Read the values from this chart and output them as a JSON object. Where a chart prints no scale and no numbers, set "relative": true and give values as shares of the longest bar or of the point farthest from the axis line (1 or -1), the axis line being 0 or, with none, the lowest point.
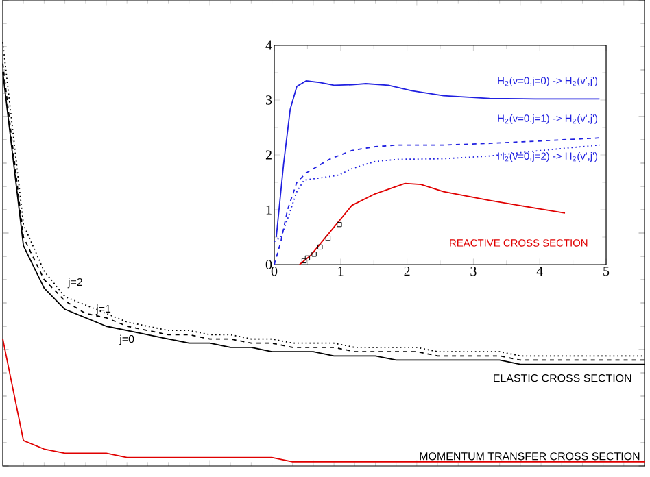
{
  "chart_data": [
    {
      "type": "line",
      "relative": true,
      "tick_labels": false,
      "categories": [
        null,
        null,
        null,
        null,
        null,
        null,
        null,
        null,
        null,
        null,
        null,
        null,
        null,
        null,
        null,
        null,
        null,
        null,
        null,
        null,
        null,
        null,
        null,
        null,
        null,
        null,
        null,
        null,
        null,
        null,
        null,
        null
      ],
      "series": [
        {
          "name": "j=0",
          "color": "#000000",
          "line_style": "solid",
          "values": [
            0.93,
            0.52,
            0.42,
            0.37,
            0.35,
            0.33,
            0.32,
            0.31,
            0.3,
            0.29,
            0.29,
            0.28,
            0.28,
            0.27,
            0.27,
            0.27,
            0.26,
            0.26,
            0.26,
            0.25,
            0.25,
            0.25,
            0.25,
            0.25,
            0.25,
            0.24,
            0.24,
            0.24,
            0.24,
            0.24,
            0.24,
            0.24
          ]
        },
        {
          "name": "j=1",
          "color": "#000000",
          "line_style": "dashed",
          "values": [
            0.95,
            0.54,
            0.44,
            0.39,
            0.36,
            0.35,
            0.33,
            0.32,
            0.31,
            0.31,
            0.3,
            0.3,
            0.29,
            0.29,
            0.28,
            0.28,
            0.28,
            0.27,
            0.27,
            0.27,
            0.27,
            0.26,
            0.26,
            0.26,
            0.26,
            0.25,
            0.25,
            0.25,
            0.25,
            0.25,
            0.25,
            0.25
          ]
        },
        {
          "name": "j=2",
          "color": "#000000",
          "line_style": "dotted",
          "values": [
            1.0,
            0.57,
            0.46,
            0.4,
            0.38,
            0.36,
            0.34,
            0.33,
            0.32,
            0.32,
            0.31,
            0.31,
            0.3,
            0.3,
            0.29,
            0.29,
            0.29,
            0.28,
            0.28,
            0.28,
            0.28,
            0.27,
            0.27,
            0.27,
            0.27,
            0.26,
            0.26,
            0.26,
            0.26,
            0.26,
            0.26,
            0.26
          ]
        },
        {
          "name": "MOMENTUM TRANSFER CROSS SECTION",
          "color": "#e00000",
          "line_style": "solid",
          "values": [
            0.3,
            0.06,
            0.04,
            0.03,
            0.03,
            0.03,
            0.02,
            0.02,
            0.02,
            0.02,
            0.02,
            0.02,
            0.02,
            0.02,
            0.01,
            0.01,
            0.01,
            0.01,
            0.01,
            0.01,
            0.01,
            0.01,
            0.01,
            0.01,
            0.01,
            0.01,
            0.01,
            0.01,
            0.01,
            0.01,
            0.01,
            0.01
          ]
        }
      ],
      "annotations": [
        "ELASTIC CROSS SECTION"
      ]
    },
    {
      "type": "line",
      "xlim": [
        0,
        5
      ],
      "ylim": [
        0,
        4
      ],
      "xticks": [
        0,
        1,
        2,
        3,
        4,
        5
      ],
      "yticks": [
        0,
        1,
        2,
        3,
        4
      ],
      "series": [
        {
          "name": "H$_{2}$(v=0,j=0) -> H$_{2}$(v',j')",
          "color": "#2020e0",
          "line_style": "solid",
          "x": [
            0.03,
            0.14,
            0.24,
            0.34,
            0.48,
            0.69,
            0.9,
            1.17,
            1.38,
            1.72,
            2.07,
            2.55,
            3.24,
            3.93,
            4.9
          ],
          "values": [
            0.5,
            1.83,
            2.83,
            3.25,
            3.35,
            3.32,
            3.27,
            3.28,
            3.3,
            3.27,
            3.17,
            3.08,
            3.03,
            3.02,
            3.02
          ]
        },
        {
          "name": "H$_{2}$(v=0,j=1) -> H$_{2}$(v',j')",
          "color": "#2020e0",
          "line_style": "dashed",
          "x": [
            0,
            0.1,
            0.2,
            0.34,
            0.48,
            0.83,
            1.17,
            1.52,
            1.86,
            2.55,
            3.24,
            3.93,
            4.9
          ],
          "values": [
            0,
            0.42,
            1.0,
            1.5,
            1.67,
            1.92,
            2.08,
            2.15,
            2.18,
            2.18,
            2.21,
            2.25,
            2.31
          ]
        },
        {
          "name": "H$_{2}$(v=0,j=2) -> H$_{2}$(v',j')",
          "color": "#2020e0",
          "line_style": "dotted",
          "x": [
            0,
            0.1,
            0.2,
            0.34,
            0.45,
            0.69,
            0.97,
            1.17,
            1.52,
            1.86,
            2.55,
            3.24,
            3.93,
            4.9
          ],
          "values": [
            0.42,
            0.5,
            0.83,
            1.33,
            1.54,
            1.58,
            1.63,
            1.75,
            1.88,
            1.92,
            1.93,
            1.98,
            2.07,
            2.18
          ]
        },
        {
          "name": "REACTIVE CROSS SECTION",
          "color": "#e00000",
          "line_style": "solid",
          "x": [
            0.38,
            0.55,
            0.83,
            1.17,
            1.52,
            1.97,
            2.21,
            2.55,
            3.24,
            3.93,
            4.38
          ],
          "values": [
            0,
            0.17,
            0.58,
            1.08,
            1.29,
            1.48,
            1.46,
            1.33,
            1.17,
            1.03,
            0.94
          ]
        },
        {
          "type": "scatter",
          "marker": "square",
          "color": "#000000",
          "x": [
            0.45,
            0.5,
            0.6,
            0.69,
            0.81,
            0.98
          ],
          "values": [
            0.07,
            0.12,
            0.19,
            0.32,
            0.48,
            0.73
          ]
        }
      ]
    }
  ]
}
